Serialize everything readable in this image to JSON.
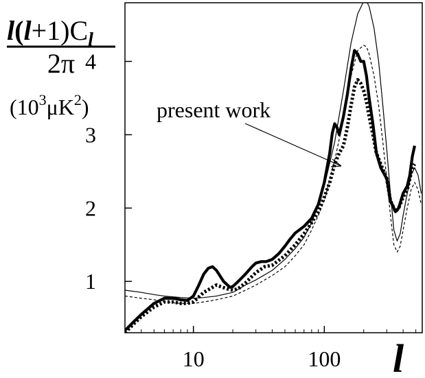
{
  "chart_data": {
    "type": "line",
    "xscale": "log",
    "xlim": [
      3,
      560
    ],
    "ylim": [
      0.3,
      4.8
    ],
    "grid": false,
    "legend": "none",
    "xlabel": "l",
    "ylabel": {
      "top_a": "l",
      "top_b": "(",
      "top_c": "l",
      "top_d": "+1)C",
      "top_sub": "l",
      "bottom": "2π",
      "units_pre": "(10",
      "units_sup1": "3",
      "units_mid": "μK",
      "units_sup2": "2",
      "units_post": ")"
    },
    "xticks": [
      {
        "value": 10,
        "label": "10"
      },
      {
        "value": 100,
        "label": "100"
      }
    ],
    "yticks": [
      {
        "value": 1,
        "label": "1"
      },
      {
        "value": 2,
        "label": "2"
      },
      {
        "value": 3,
        "label": "3"
      },
      {
        "value": 4,
        "label": "4"
      }
    ],
    "annotations": [
      {
        "text": "present work",
        "x": 165,
        "y": 3.6
      }
    ],
    "series": [
      {
        "style": "thick-solid",
        "x": [
          3,
          3.5,
          4,
          5,
          6,
          7,
          8,
          9,
          10,
          11,
          12,
          13,
          14,
          15,
          17,
          19,
          20,
          22,
          25,
          28,
          30,
          33,
          36,
          40,
          45,
          50,
          55,
          60,
          70,
          80,
          90,
          100,
          110,
          115,
          120,
          125,
          130,
          140,
          150,
          160,
          170,
          180,
          190,
          200,
          210,
          220,
          235,
          250,
          270,
          300,
          320,
          350,
          370,
          400,
          430,
          450,
          470,
          490
        ],
        "y": [
          0.33,
          0.45,
          0.55,
          0.7,
          0.77,
          0.77,
          0.75,
          0.74,
          0.8,
          0.95,
          1.1,
          1.18,
          1.2,
          1.15,
          1.0,
          0.92,
          0.93,
          1.0,
          1.1,
          1.2,
          1.25,
          1.27,
          1.27,
          1.3,
          1.38,
          1.48,
          1.58,
          1.66,
          1.75,
          1.86,
          2.05,
          2.35,
          2.75,
          3.02,
          3.15,
          3.1,
          3.0,
          3.25,
          3.55,
          3.9,
          4.15,
          4.1,
          4.0,
          4.0,
          3.8,
          3.5,
          3.15,
          2.75,
          2.55,
          2.4,
          2.1,
          1.95,
          2.0,
          2.2,
          2.3,
          2.45,
          2.7,
          2.85
        ]
      },
      {
        "style": "thick-dotted",
        "x": [
          3,
          3.5,
          4,
          5,
          6,
          7,
          8,
          9,
          10,
          12,
          15,
          18,
          20,
          22,
          25,
          30,
          35,
          40,
          50,
          60,
          70,
          80,
          90,
          100,
          110,
          120,
          130,
          140,
          150,
          160,
          170,
          180,
          190,
          200,
          210,
          220,
          235,
          250,
          270,
          300,
          320,
          350,
          370,
          400,
          430,
          450,
          470,
          490
        ],
        "y": [
          0.3,
          0.42,
          0.52,
          0.65,
          0.72,
          0.72,
          0.7,
          0.7,
          0.72,
          0.85,
          0.95,
          0.9,
          0.88,
          0.9,
          0.98,
          1.12,
          1.2,
          1.22,
          1.35,
          1.5,
          1.65,
          1.8,
          1.95,
          2.15,
          2.35,
          2.6,
          2.75,
          2.85,
          3.1,
          3.4,
          3.65,
          3.75,
          3.7,
          3.6,
          3.45,
          3.25,
          3.0,
          2.75,
          2.6,
          2.4,
          2.1,
          1.95,
          2.0,
          2.15,
          2.25,
          2.4,
          2.55,
          2.6
        ]
      },
      {
        "style": "thin-solid",
        "x": [
          3,
          4,
          5,
          6,
          8,
          10,
          12,
          15,
          20,
          25,
          30,
          40,
          50,
          60,
          70,
          80,
          90,
          100,
          120,
          140,
          160,
          180,
          200,
          210,
          220,
          240,
          260,
          280,
          300,
          320,
          340,
          360,
          380,
          400,
          430,
          460,
          490,
          520,
          550
        ],
        "y": [
          0.88,
          0.85,
          0.82,
          0.8,
          0.78,
          0.77,
          0.78,
          0.8,
          0.85,
          0.95,
          1.02,
          1.15,
          1.3,
          1.45,
          1.6,
          1.8,
          2.05,
          2.3,
          2.9,
          3.6,
          4.25,
          4.65,
          4.82,
          4.82,
          4.75,
          4.45,
          4.0,
          3.4,
          2.8,
          2.2,
          1.7,
          1.55,
          1.65,
          1.9,
          2.2,
          2.45,
          2.55,
          2.45,
          2.2
        ]
      },
      {
        "style": "thin-dashed",
        "x": [
          3,
          4,
          5,
          6,
          8,
          10,
          12,
          15,
          20,
          25,
          30,
          40,
          50,
          60,
          70,
          80,
          90,
          100,
          120,
          140,
          160,
          180,
          200,
          210,
          220,
          240,
          260,
          280,
          300,
          320,
          340,
          360,
          380,
          400,
          430,
          460,
          490,
          520,
          550
        ],
        "y": [
          0.8,
          0.77,
          0.75,
          0.72,
          0.7,
          0.7,
          0.72,
          0.75,
          0.8,
          0.88,
          0.95,
          1.08,
          1.2,
          1.35,
          1.5,
          1.7,
          1.9,
          2.1,
          2.65,
          3.2,
          3.8,
          4.15,
          4.22,
          4.2,
          4.1,
          3.8,
          3.4,
          2.9,
          2.4,
          1.9,
          1.5,
          1.4,
          1.48,
          1.7,
          2.0,
          2.25,
          2.35,
          2.25,
          2.05
        ]
      }
    ]
  }
}
